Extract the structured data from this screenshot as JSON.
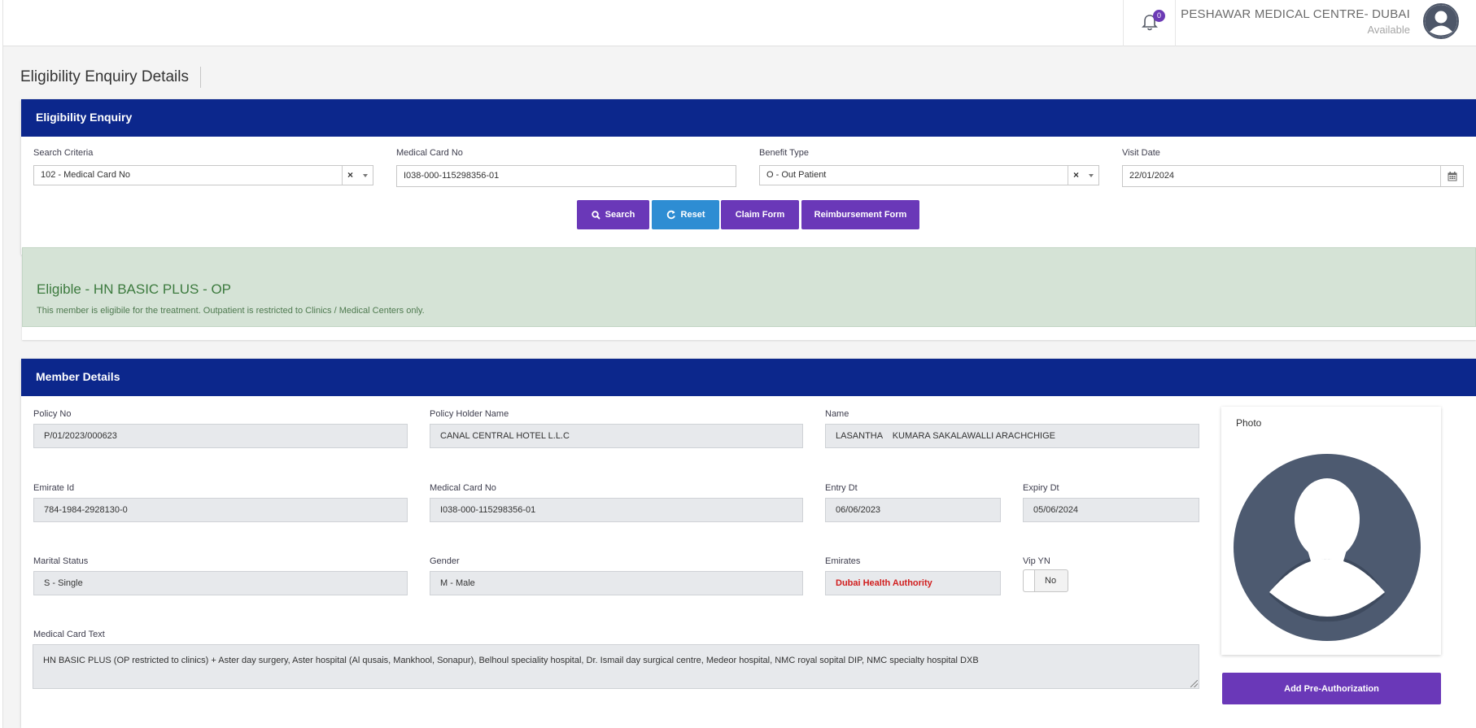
{
  "header": {
    "notification_count": "0",
    "org_name": "PESHAWAR MEDICAL CENTRE- DUBAI",
    "status": "Available"
  },
  "page_title": "Eligibility Enquiry Details",
  "enquiry": {
    "title": "Eligibility Enquiry",
    "search_criteria_label": "Search Criteria",
    "search_criteria_value": "102 - Medical Card No",
    "medical_card_label": "Medical Card No",
    "medical_card_value": "I038-000-115298356-01",
    "benefit_type_label": "Benefit Type",
    "benefit_type_value": "O - Out Patient",
    "visit_date_label": "Visit Date",
    "visit_date_value": "22/01/2024",
    "clear_glyph": "×",
    "buttons": {
      "search": "Search",
      "reset": "Reset",
      "claim_form": "Claim Form",
      "reimbursement_form": "Reimbursement Form"
    }
  },
  "eligibility": {
    "title": "Eligible - HN BASIC PLUS - OP",
    "message": "This member is eligibile for the treatment. Outpatient is restricted to Clinics / Medical Centers only."
  },
  "member": {
    "title": "Member Details",
    "policy_no_label": "Policy No",
    "policy_no": "P/01/2023/000623",
    "policy_holder_label": "Policy Holder Name",
    "policy_holder": "CANAL CENTRAL HOTEL L.L.C",
    "name_label": "Name",
    "name": "LASANTHA    KUMARA SAKALAWALLI ARACHCHIGE",
    "emirate_id_label": "Emirate Id",
    "emirate_id": "784-1984-2928130-0",
    "card_no_label": "Medical Card No",
    "card_no": "I038-000-115298356-01",
    "entry_dt_label": "Entry Dt",
    "entry_dt": "06/06/2023",
    "expiry_dt_label": "Expiry Dt",
    "expiry_dt": "05/06/2024",
    "marital_label": "Marital Status",
    "marital": "S - Single",
    "gender_label": "Gender",
    "gender": "M - Male",
    "emirates_label": "Emirates",
    "emirates": "Dubai Health Authority",
    "vip_label": "Vip YN",
    "vip": "No",
    "card_text_label": "Medical Card Text",
    "card_text": "HN BASIC PLUS (OP restricted to clinics) + Aster day surgery, Aster hospital (Al qusais, Mankhool, Sonapur), Belhoul speciality hospital, Dr. Ismail day surgical centre, Medeor hospital, NMC royal sopital DIP,  NMC specialty hospital DXB",
    "photo_label": "Photo",
    "add_preauth": "Add Pre-Authorization"
  },
  "colors": {
    "header_blue": "#0c278c",
    "primary_purple": "#6a38b8",
    "reset_blue": "#2e8dd3",
    "success_bg": "#d5e3d6",
    "success_text": "#3c7a3e",
    "danger": "#d11e1e"
  }
}
